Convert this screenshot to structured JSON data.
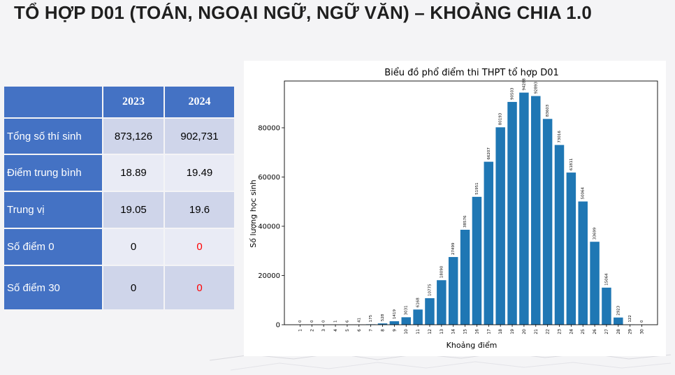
{
  "slide": {
    "title": "TỔ HỢP D01 (TOÁN, NGOẠI NGỮ, NGỮ VĂN) – KHOẢNG CHIA 1.0"
  },
  "table": {
    "headers": [
      "2023",
      "2024"
    ],
    "rows": [
      {
        "label": "Tổng số thí sinh",
        "v2023": "873,126",
        "v2024": "902,731"
      },
      {
        "label": "Điểm trung bình",
        "v2023": "18.89",
        "v2024": "19.49"
      },
      {
        "label": "Trung vị",
        "v2023": "19.05",
        "v2024": "19.6"
      },
      {
        "label": "Số điểm 0",
        "v2023": "0",
        "v2024": "0"
      },
      {
        "label": "Số điểm 30",
        "v2023": "0",
        "v2024": "0"
      }
    ],
    "highlight_color": "#ff0000",
    "header_color": "#4472c4"
  },
  "chart_data": {
    "type": "bar",
    "title": "Biểu đồ phổ điểm thi THPT tổ hợp D01",
    "xlabel": "Khoảng điểm",
    "ylabel": "Số lượng học sinh",
    "categories": [
      "1",
      "2",
      "3",
      "4",
      "5",
      "6",
      "7",
      "8",
      "9",
      "10",
      "11",
      "12",
      "13",
      "14",
      "15",
      "16",
      "17",
      "18",
      "19",
      "20",
      "21",
      "22",
      "23",
      "24",
      "25",
      "26",
      "27",
      "28",
      "29",
      "30"
    ],
    "values": [
      0,
      0,
      0,
      1,
      6,
      41,
      175,
      528,
      1419,
      3031,
      6168,
      10775,
      18090,
      27499,
      38576,
      51951,
      66207,
      80193,
      90503,
      94288,
      92893,
      83603,
      73016,
      61811,
      50064,
      33699,
      15064,
      2923,
      122,
      0
    ],
    "yticks": [
      0,
      20000,
      40000,
      60000,
      80000
    ],
    "ylim": [
      0,
      99000
    ],
    "bar_color": "#1f77b4",
    "grid": false
  }
}
